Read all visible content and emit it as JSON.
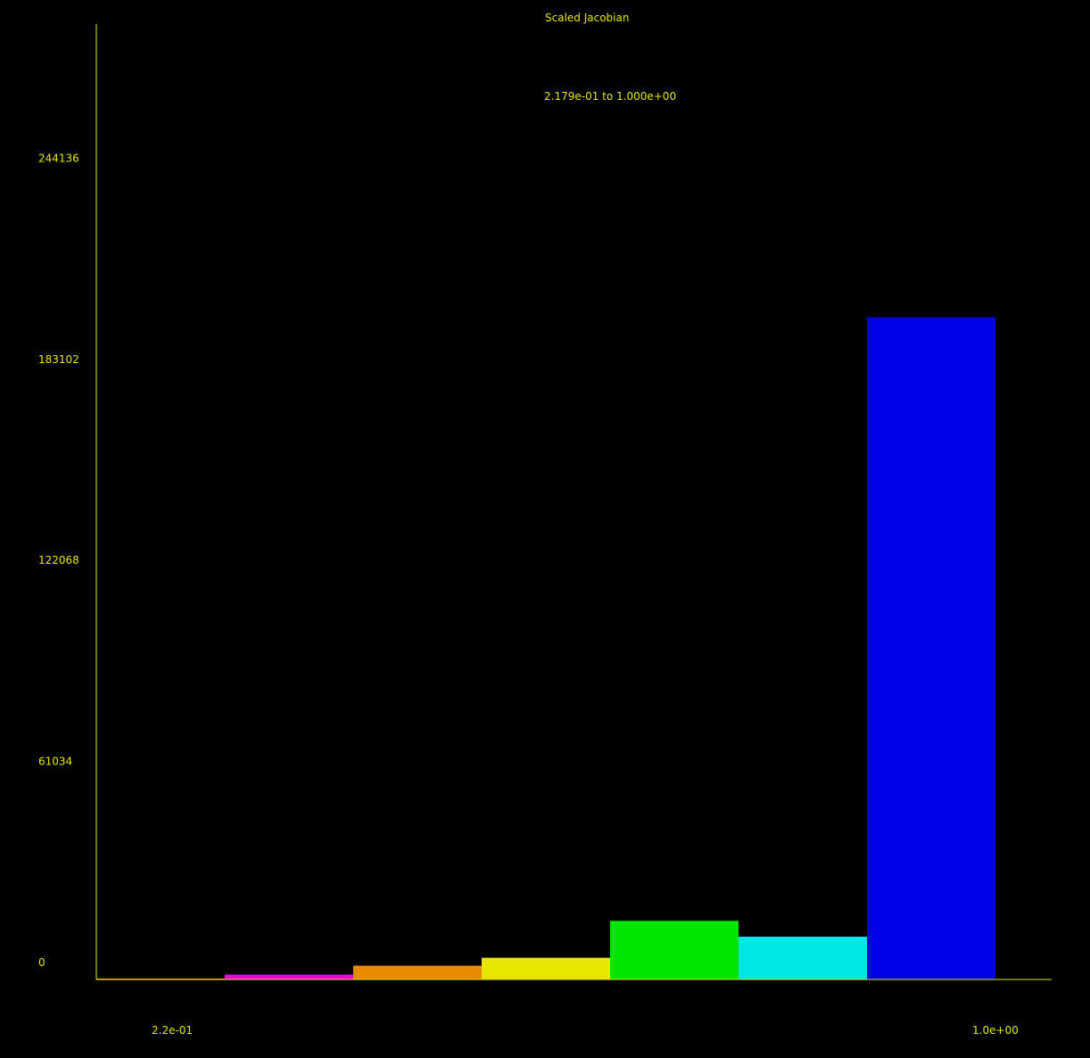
{
  "chart_data": {
    "type": "bar",
    "title": "Scaled Jacobian",
    "subtitle": "2.179e-01 to 1.000e+00",
    "x_range": [
      0.2179,
      1.0
    ],
    "x_tick_labels": [
      "2.2e-01",
      "1.0e+00"
    ],
    "y_tick_labels": [
      "0",
      "61034",
      "122068",
      "183102",
      "244136"
    ],
    "ylim": [
      0,
      290000
    ],
    "bins": [
      {
        "value": 300,
        "color": "#ff7f00"
      },
      {
        "value": 1500,
        "color": "#e600e6"
      },
      {
        "value": 4200,
        "color": "#e68a00"
      },
      {
        "value": 6600,
        "color": "#e6e600"
      },
      {
        "value": 17800,
        "color": "#00e600"
      },
      {
        "value": 13000,
        "color": "#00e6e6"
      },
      {
        "value": 201000,
        "color": "#0000e6"
      }
    ],
    "axis_color": "#e6e600",
    "text_color": "#e6e600",
    "background": "#000000"
  }
}
